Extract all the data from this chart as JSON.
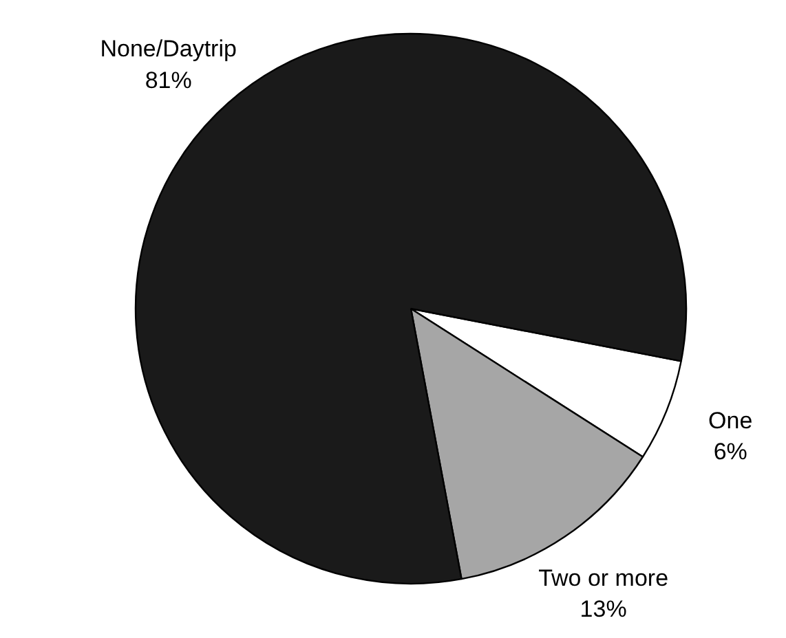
{
  "chart_data": {
    "type": "pie",
    "categories": [
      "One",
      "Two or more",
      "None/Daytrip"
    ],
    "values": [
      6,
      13,
      81
    ],
    "colors": [
      "#ffffff",
      "#a6a6a6",
      "#1a1a1a"
    ],
    "value_labels": [
      "6%",
      "13%",
      "81%"
    ]
  }
}
